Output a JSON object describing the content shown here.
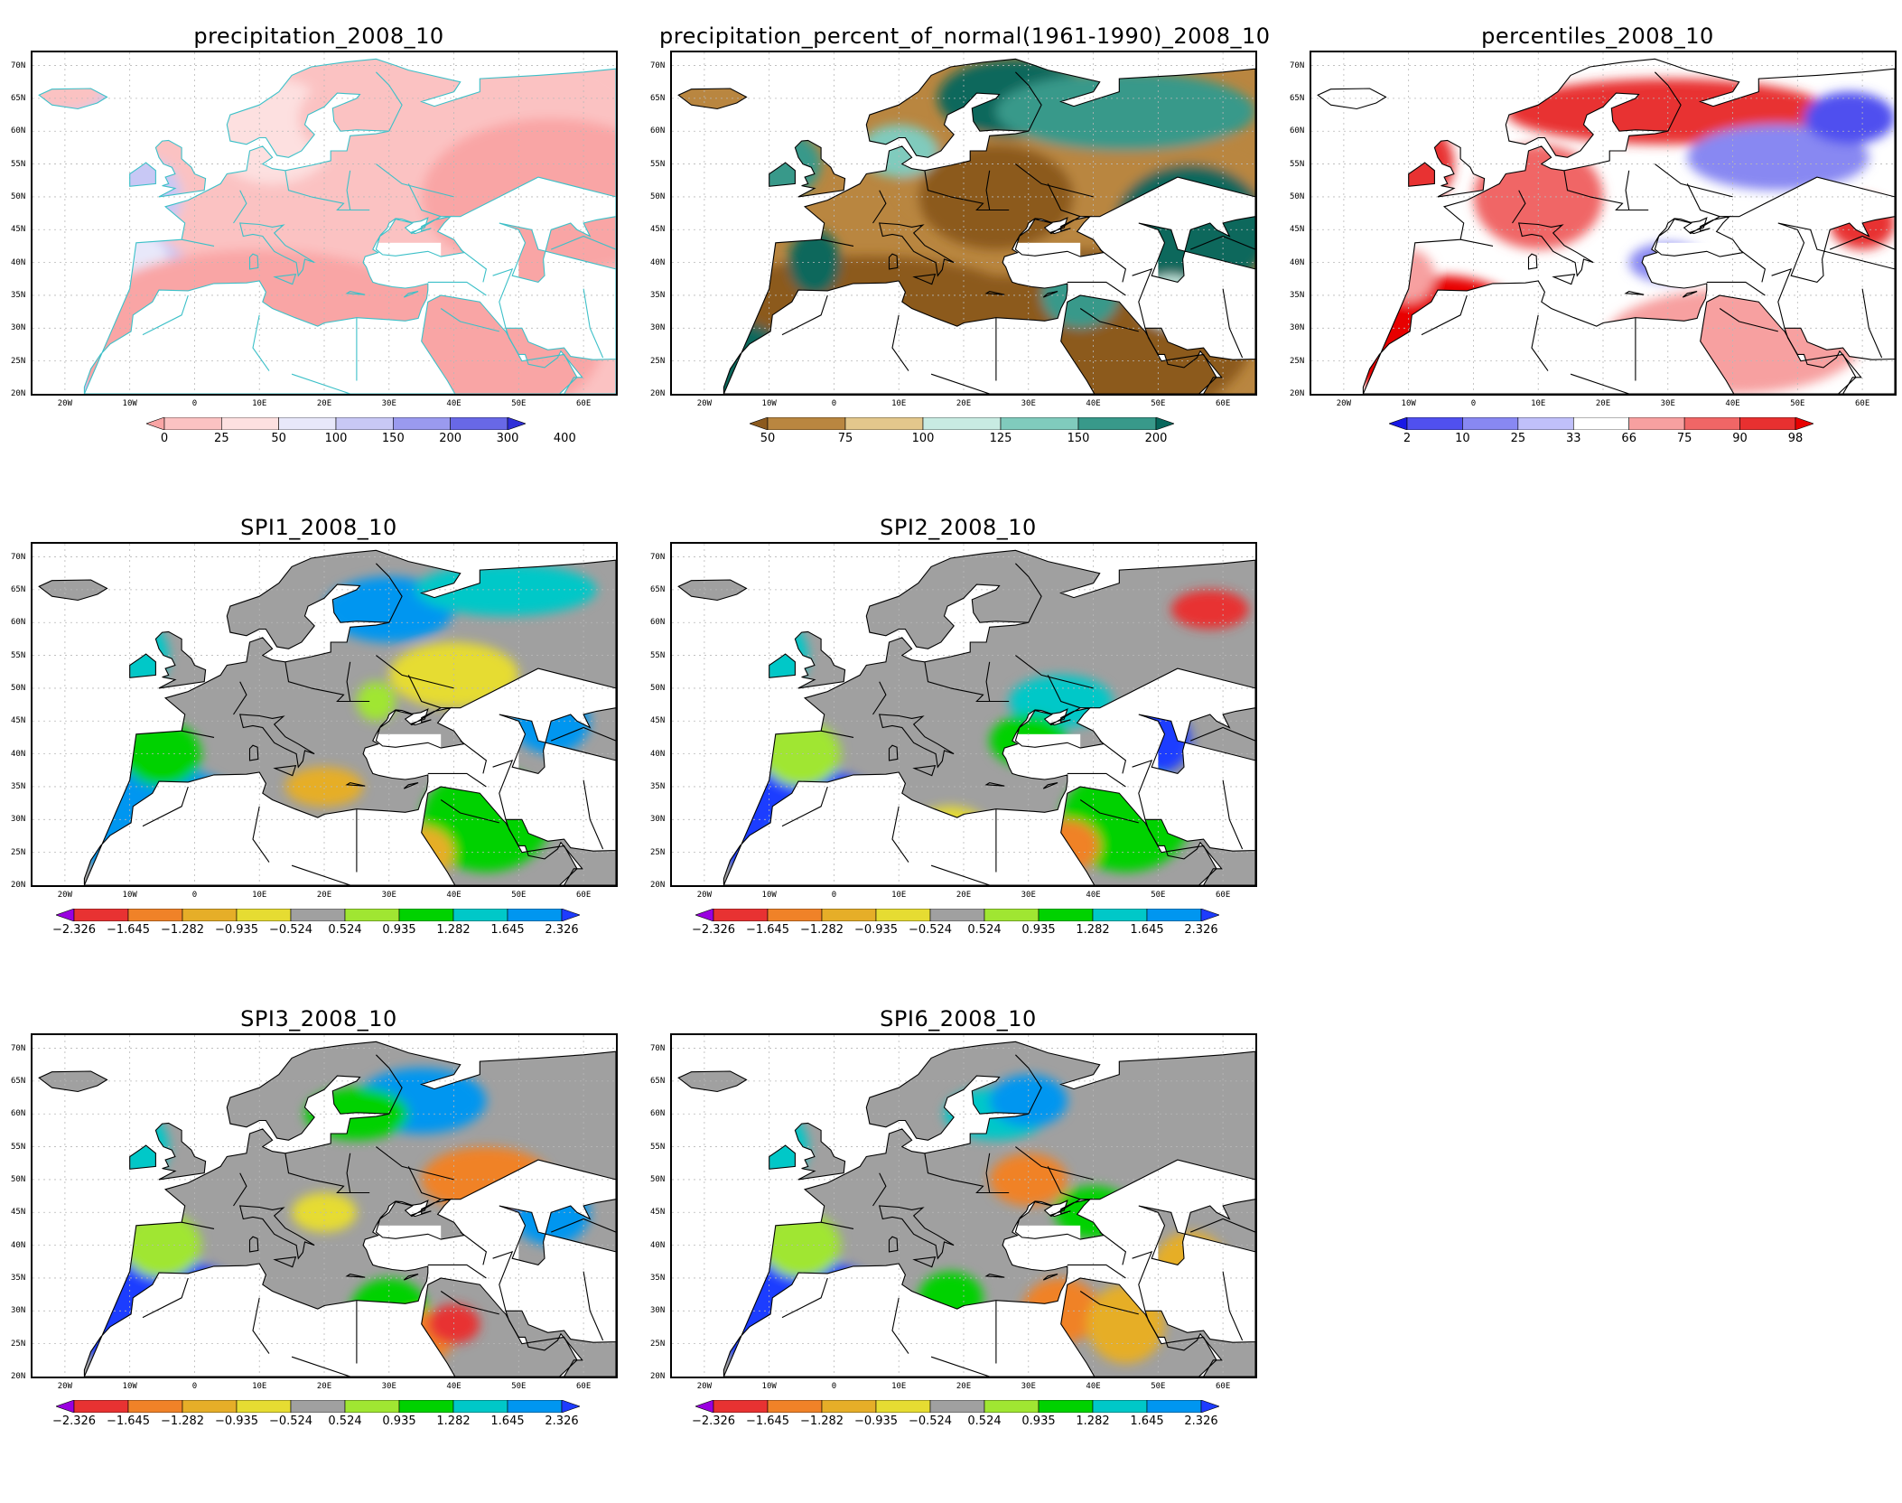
{
  "panels": [
    {
      "id": "precip",
      "title": "precipitation_2008_10",
      "colorbar": {
        "labels": [
          "0",
          "25",
          "50",
          "100",
          "150",
          "200",
          "300",
          "400"
        ],
        "colors": [
          "#f9a5a5",
          "#fbc2c2",
          "#fde0e0",
          "#e8e8fa",
          "#c8c8f5",
          "#9a9aef",
          "#6868e6",
          "#2e2ed8"
        ]
      }
    },
    {
      "id": "pct-normal",
      "title": "precipitation_percent_of_normal(1961-1990)_2008_10",
      "colorbar": {
        "labels": [
          "50",
          "75",
          "100",
          "125",
          "150",
          "200"
        ],
        "colors": [
          "#8c5a1e",
          "#b98640",
          "#e3c78c",
          "#c8ebe2",
          "#80cbbd",
          "#38998a",
          "#07675c"
        ]
      }
    },
    {
      "id": "percentiles",
      "title": "percentiles_2008_10",
      "colorbar": {
        "labels": [
          "2",
          "10",
          "25",
          "33",
          "66",
          "75",
          "90",
          "98"
        ],
        "colors": [
          "#1818e6",
          "#5050ef",
          "#8888f2",
          "#c0c0fa",
          "#ffffff",
          "#f7a0a0",
          "#f06666",
          "#e83030",
          "#e80000"
        ]
      }
    },
    {
      "id": "spi1",
      "title": "SPI1_2008_10",
      "colorbar": {
        "labels": [
          "−2.326",
          "−1.645",
          "−1.282",
          "−0.935",
          "−0.524",
          "0.524",
          "0.935",
          "1.282",
          "1.645",
          "2.326"
        ],
        "colors": [
          "#9a00e0",
          "#e83232",
          "#f08228",
          "#e6ae28",
          "#e6dc32",
          "#a0a0a0",
          "#a0e632",
          "#00d200",
          "#00c8c8",
          "#0096f0",
          "#1e3cff"
        ]
      }
    },
    {
      "id": "spi2",
      "title": "SPI2_2008_10",
      "colorbar": {
        "labels": [
          "−2.326",
          "−1.645",
          "−1.282",
          "−0.935",
          "−0.524",
          "0.524",
          "0.935",
          "1.282",
          "1.645",
          "2.326"
        ],
        "colors": [
          "#9a00e0",
          "#e83232",
          "#f08228",
          "#e6ae28",
          "#e6dc32",
          "#a0a0a0",
          "#a0e632",
          "#00d200",
          "#00c8c8",
          "#0096f0",
          "#1e3cff"
        ]
      }
    },
    {
      "id": "spi3",
      "title": "SPI3_2008_10",
      "colorbar": {
        "labels": [
          "−2.326",
          "−1.645",
          "−1.282",
          "−0.935",
          "−0.524",
          "0.524",
          "0.935",
          "1.282",
          "1.645",
          "2.326"
        ],
        "colors": [
          "#9a00e0",
          "#e83232",
          "#f08228",
          "#e6ae28",
          "#e6dc32",
          "#a0a0a0",
          "#a0e632",
          "#00d200",
          "#00c8c8",
          "#0096f0",
          "#1e3cff"
        ]
      }
    },
    {
      "id": "spi6",
      "title": "SPI6_2008_10",
      "colorbar": {
        "labels": [
          "−2.326",
          "−1.645",
          "−1.282",
          "−0.935",
          "−0.524",
          "0.524",
          "0.935",
          "1.282",
          "1.645",
          "2.326"
        ],
        "colors": [
          "#9a00e0",
          "#e83232",
          "#f08228",
          "#e6ae28",
          "#e6dc32",
          "#a0a0a0",
          "#a0e632",
          "#00d200",
          "#00c8c8",
          "#0096f0",
          "#1e3cff"
        ]
      }
    }
  ],
  "axes": {
    "lat_labels": [
      "70N",
      "65N",
      "60N",
      "55N",
      "50N",
      "45N",
      "40N",
      "35N",
      "30N",
      "25N",
      "20N"
    ],
    "lon_labels": [
      "20W",
      "10W",
      "0",
      "10E",
      "20E",
      "30E",
      "40E",
      "50E",
      "60E"
    ]
  }
}
